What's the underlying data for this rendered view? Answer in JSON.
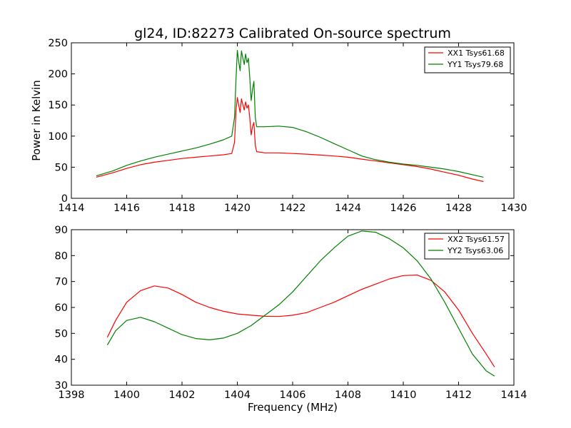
{
  "figure": {
    "title": "gl24, ID:82273 Calibrated On-source spectrum"
  },
  "chart_data": [
    {
      "type": "line",
      "title": "gl24, ID:82273 Calibrated On-source spectrum",
      "xlabel": "",
      "ylabel": "Power in Kelvin",
      "xlim": [
        1414,
        1430
      ],
      "ylim": [
        0,
        250
      ],
      "xticks": [
        "1414",
        "1416",
        "1418",
        "1420",
        "1422",
        "1424",
        "1426",
        "1428",
        "1430"
      ],
      "yticks": [
        "0",
        "50",
        "100",
        "150",
        "200",
        "250"
      ],
      "grid": false,
      "legend": "top-right",
      "series": [
        {
          "name": "XX1 Tsys61.68",
          "color": "#ff0000",
          "x": [
            1414.9,
            1415.5,
            1416,
            1416.5,
            1417,
            1417.5,
            1418,
            1418.5,
            1419,
            1419.5,
            1419.8,
            1419.9,
            1419.95,
            1420.0,
            1420.05,
            1420.1,
            1420.15,
            1420.2,
            1420.25,
            1420.3,
            1420.35,
            1420.4,
            1420.45,
            1420.5,
            1420.55,
            1420.6,
            1420.65,
            1420.7,
            1421,
            1421.5,
            1422,
            1422.5,
            1423,
            1423.5,
            1424,
            1424.5,
            1425,
            1425.5,
            1426,
            1426.5,
            1427,
            1427.5,
            1428,
            1428.5,
            1428.9
          ],
          "y": [
            34,
            41,
            48,
            54,
            58,
            61,
            64,
            66,
            68,
            70,
            72,
            90,
            140,
            162,
            150,
            138,
            160,
            150,
            142,
            155,
            145,
            150,
            130,
            102,
            115,
            122,
            85,
            75,
            73,
            73,
            72,
            71,
            69.5,
            68,
            66,
            63,
            60,
            57,
            54,
            51,
            47,
            42,
            37,
            31,
            27
          ]
        },
        {
          "name": "YY1 Tsys79.68",
          "color": "#008000",
          "x": [
            1414.9,
            1415.5,
            1416,
            1416.5,
            1417,
            1417.5,
            1418,
            1418.5,
            1419,
            1419.5,
            1419.8,
            1419.9,
            1419.95,
            1420.0,
            1420.05,
            1420.1,
            1420.15,
            1420.2,
            1420.25,
            1420.3,
            1420.35,
            1420.4,
            1420.45,
            1420.5,
            1420.55,
            1420.6,
            1420.65,
            1420.7,
            1421,
            1421.5,
            1422,
            1422.5,
            1423,
            1423.5,
            1424,
            1424.5,
            1425,
            1425.5,
            1426,
            1426.5,
            1427,
            1427.5,
            1428,
            1428.5,
            1428.9
          ],
          "y": [
            36,
            44,
            53,
            60,
            66,
            71,
            76,
            81,
            87,
            94,
            100,
            130,
            190,
            238,
            220,
            205,
            237,
            225,
            215,
            232,
            218,
            225,
            195,
            157,
            175,
            188,
            130,
            115,
            115,
            116,
            114,
            107,
            98,
            88,
            78,
            68,
            62,
            58,
            55,
            53,
            50,
            47,
            43,
            38,
            34
          ]
        }
      ]
    },
    {
      "type": "line",
      "title": "",
      "xlabel": "Frequency (MHz)",
      "ylabel": "",
      "xlim": [
        1398,
        1414
      ],
      "ylim": [
        30,
        90
      ],
      "xticks": [
        "1398",
        "1400",
        "1402",
        "1404",
        "1406",
        "1408",
        "1410",
        "1412",
        "1414"
      ],
      "yticks": [
        "30",
        "40",
        "50",
        "60",
        "70",
        "80",
        "90"
      ],
      "grid": false,
      "legend": "top-right",
      "series": [
        {
          "name": "XX2 Tsys61.57",
          "color": "#ff0000",
          "x": [
            1399.3,
            1399.6,
            1400,
            1400.5,
            1401,
            1401.5,
            1402,
            1402.5,
            1403,
            1403.5,
            1404,
            1404.5,
            1405,
            1405.5,
            1406,
            1406.5,
            1407,
            1407.5,
            1408,
            1408.5,
            1409,
            1409.5,
            1410,
            1410.5,
            1411,
            1411.5,
            1412,
            1412.5,
            1413,
            1413.3
          ],
          "y": [
            48.5,
            55,
            62,
            66.5,
            68.3,
            67.5,
            65,
            62,
            60,
            58.5,
            57.5,
            57,
            56.6,
            56.5,
            57,
            58,
            60,
            62,
            64.5,
            67,
            69,
            71,
            72.3,
            72.5,
            70.5,
            66,
            59,
            50,
            42,
            37
          ]
        },
        {
          "name": "YY2 Tsys63.06",
          "color": "#008000",
          "x": [
            1399.3,
            1399.6,
            1400,
            1400.5,
            1401,
            1401.5,
            1402,
            1402.5,
            1403,
            1403.5,
            1404,
            1404.5,
            1405,
            1405.5,
            1406,
            1406.5,
            1407,
            1407.5,
            1408,
            1408.5,
            1409,
            1409.5,
            1410,
            1410.5,
            1411,
            1411.5,
            1412,
            1412.5,
            1413,
            1413.3
          ],
          "y": [
            45.5,
            51,
            55,
            56.2,
            54.5,
            52,
            49.5,
            48,
            47.5,
            48.2,
            50,
            53,
            57,
            61,
            66,
            72,
            78,
            83,
            87.5,
            89.5,
            89,
            86.5,
            83,
            78,
            71,
            62,
            52,
            42,
            35.5,
            33.5
          ]
        }
      ]
    }
  ]
}
